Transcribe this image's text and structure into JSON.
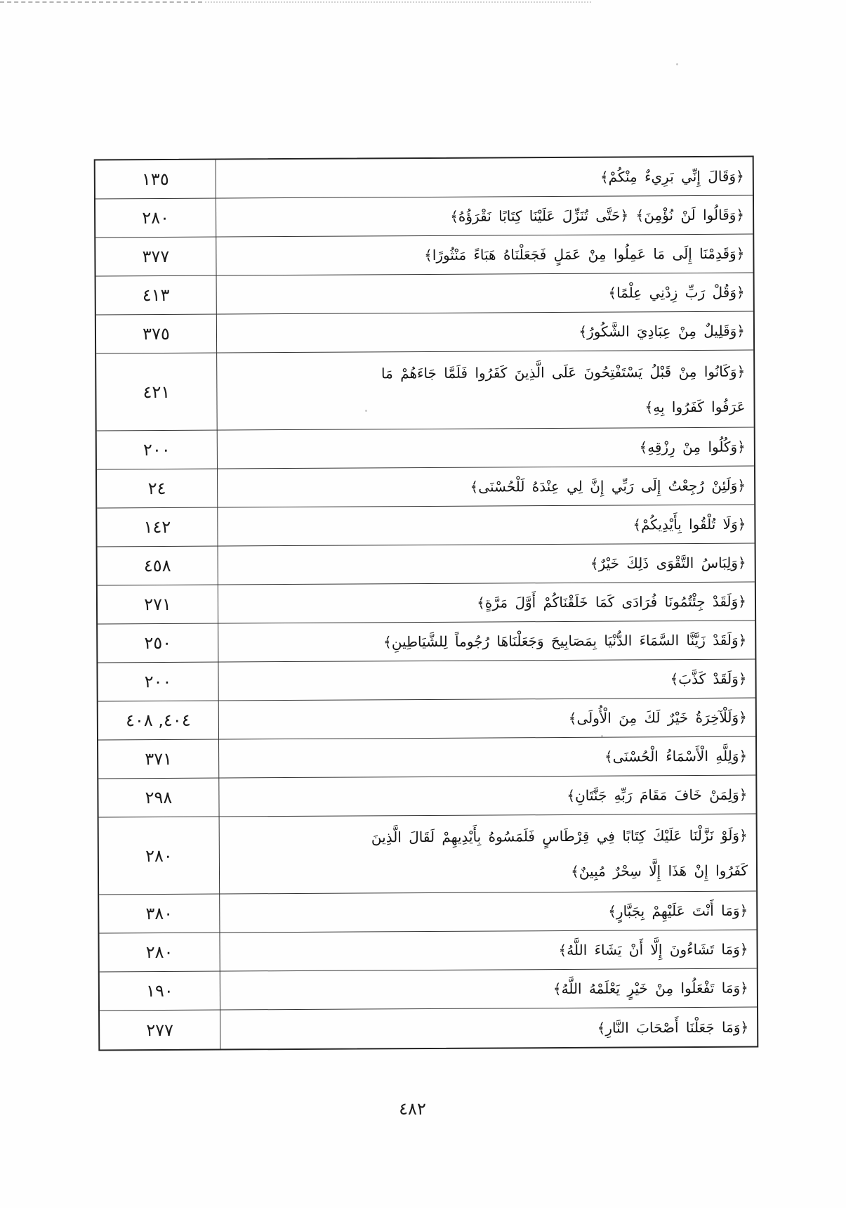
{
  "table": {
    "rows": [
      {
        "pages": "١٣٥",
        "verse": "﴿وَقَالَ إِنِّي بَرِيءٌ مِنْكُمْ﴾"
      },
      {
        "pages": "٢٨٠",
        "verse": "﴿وَقَالُوا لَنْ نُؤْمِنَ﴾ ﴿حَتَّى تُنَزِّلَ عَلَيْنَا كِتَابًا نَقْرَؤُهُ﴾"
      },
      {
        "pages": "٣٧٧",
        "verse": "﴿وَقَدِمْنَا إِلَى مَا عَمِلُوا مِنْ عَمَلٍ فَجَعَلْنَاهُ هَبَاءً مَنْثُورًا﴾"
      },
      {
        "pages": "٤١٣",
        "verse": "﴿وَقُلْ رَبِّ زِدْنِي عِلْمًا﴾"
      },
      {
        "pages": "٣٧٥",
        "verse": "﴿وَقَلِيلٌ مِنْ عِبَادِيَ الشَّكُورُ﴾"
      },
      {
        "pages": "٤٢١",
        "verse": "﴿وَكَانُوا مِنْ قَبْلُ يَسْتَفْتِحُونَ عَلَى الَّذِينَ كَفَرُوا فَلَمَّا جَاءَهُمْ مَا عَرَفُوا كَفَرُوا بِهِ﴾"
      },
      {
        "pages": "٢٠٠",
        "verse": "﴿وَكُلُوا مِنْ رِزْقِهِ﴾"
      },
      {
        "pages": "٢٤",
        "verse": "﴿وَلَئِنْ رُجِعْتُ إِلَى رَبِّي إِنَّ لِي عِنْدَهُ لَلْحُسْنَى﴾"
      },
      {
        "pages": "١٤٢",
        "verse": "﴿وَلَا تُلْقُوا بِأَيْدِيكُمْ﴾"
      },
      {
        "pages": "٤٥٨",
        "verse": "﴿وَلِبَاسُ التَّقْوَى ذَلِكَ خَيْرٌ﴾"
      },
      {
        "pages": "٢٧١",
        "verse": "﴿وَلَقَدْ جِئْتُمُونَا فُرَادَى كَمَا خَلَقْنَاكُمْ أَوَّلَ مَرَّةٍ﴾"
      },
      {
        "pages": "٢٥٠",
        "verse": "﴿وَلَقَدْ زَيَّنَّا السَّمَاءَ الدُّنْيَا بِمَصَابِيحَ وَجَعَلْنَاهَا رُجُوماً لِلشَّيَاطِينِ﴾"
      },
      {
        "pages": "٢٠٠",
        "verse": "﴿وَلَقَدْ كَذَّبَ﴾"
      },
      {
        "pages": "٤٠٤, ٤٠٨",
        "verse": "﴿وَلَلْآخِرَةُ خَيْرٌ لَكَ مِنَ الْأُولَى﴾"
      },
      {
        "pages": "٣٧١",
        "verse": "﴿وَلِلَّهِ الْأَسْمَاءُ الْحُسْنَى﴾"
      },
      {
        "pages": "٢٩٨",
        "verse": "﴿وَلِمَنْ خَافَ مَقَامَ رَبِّهِ جَنَّتَانِ﴾"
      },
      {
        "pages": "٢٨٠",
        "verse": "﴿وَلَوْ نَزَّلْنَا عَلَيْكَ كِتَابًا فِي قِرْطَاسٍ فَلَمَسُوهُ بِأَيْدِيهِمْ لَقَالَ الَّذِينَ كَفَرُوا إِنْ هَذَا إِلَّا سِحْرٌ مُبِينٌ﴾"
      },
      {
        "pages": "٣٨٠",
        "verse": "﴿وَمَا أَنْتَ عَلَيْهِمْ بِجَبَّارٍ﴾"
      },
      {
        "pages": "٢٨٠",
        "verse": "﴿وَمَا تَشَاءُونَ إِلَّا أَنْ يَشَاءَ اللَّهُ﴾"
      },
      {
        "pages": "١٩٠",
        "verse": "﴿وَمَا تَفْعَلُوا مِنْ خَيْرٍ يَعْلَمْهُ اللَّهُ﴾"
      },
      {
        "pages": "٢٧٧",
        "verse": "﴿وَمَا جَعَلْنَا أَصْحَابَ النَّارِ﴾"
      }
    ]
  },
  "footer": {
    "page_number": "٤٨٢"
  }
}
